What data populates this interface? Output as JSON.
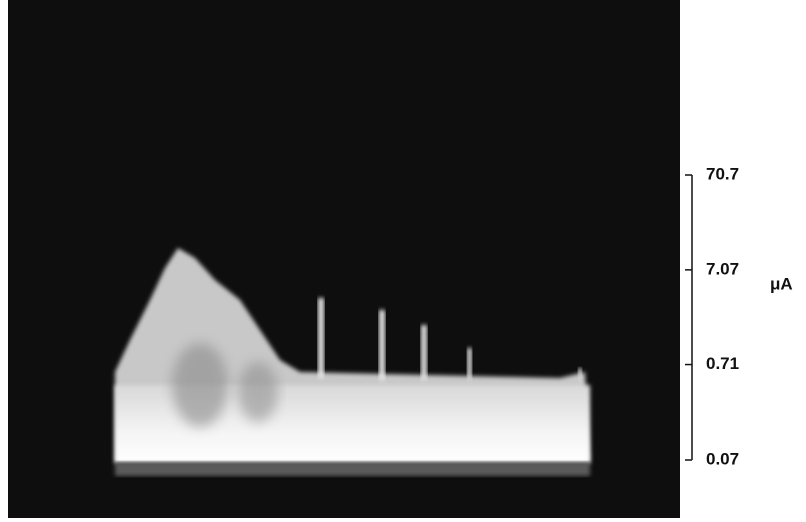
{
  "chart_data": {
    "type": "scope-trace",
    "y_unit": "μA",
    "log_y": true,
    "ylim": [
      0.07,
      70.7
    ],
    "yticks": [
      70.7,
      7.07,
      0.71,
      0.07
    ]
  }
}
